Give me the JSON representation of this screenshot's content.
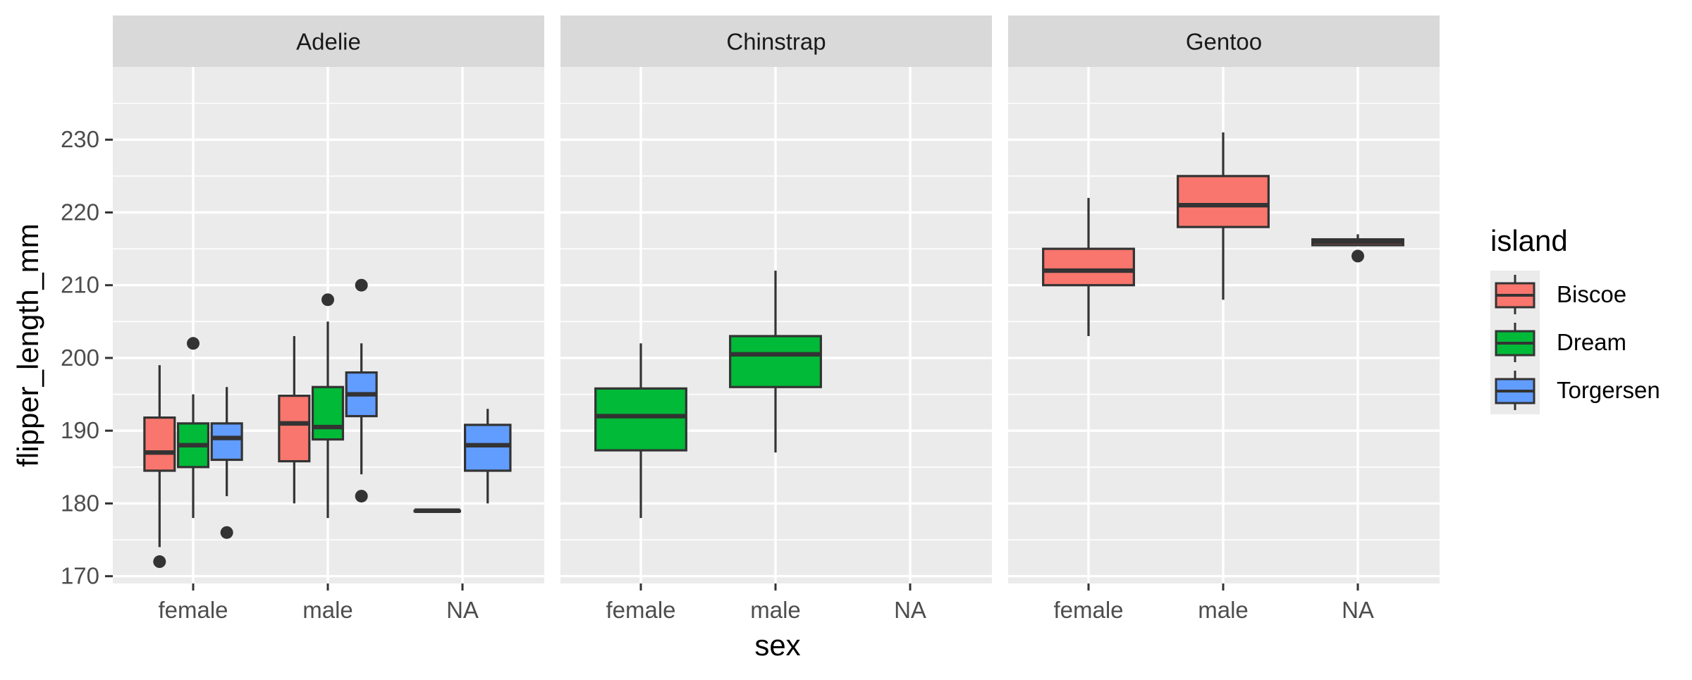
{
  "chart_data": {
    "type": "boxplot",
    "facet_var": "species",
    "facets": [
      "Adelie",
      "Chinstrap",
      "Gentoo"
    ],
    "categories": [
      "female",
      "male",
      "NA"
    ],
    "xlabel": "sex",
    "ylabel": "flipper_length_mm",
    "ylim": [
      169,
      240
    ],
    "yticks": [
      170,
      180,
      190,
      200,
      210,
      220,
      230
    ],
    "grid": true,
    "legend": {
      "title": "island",
      "position": "right",
      "entries": [
        "Biscoe",
        "Dream",
        "Torgersen"
      ]
    },
    "colors": {
      "Biscoe": "#F8766D",
      "Dream": "#00BA38",
      "Torgersen": "#619CFF",
      "panel_bg": "#EBEBEB",
      "strip_bg": "#D9D9D9",
      "grid": "#FFFFFF",
      "box_line": "#333333"
    },
    "boxes": [
      {
        "facet": "Adelie",
        "sex": "female",
        "island": "Biscoe",
        "n_groups": 3,
        "slot": 0,
        "lower": 174,
        "q1": 184.5,
        "median": 187,
        "q3": 191.8,
        "upper": 199,
        "outliers": [
          172
        ]
      },
      {
        "facet": "Adelie",
        "sex": "female",
        "island": "Dream",
        "n_groups": 3,
        "slot": 1,
        "lower": 178,
        "q1": 185,
        "median": 188,
        "q3": 191,
        "upper": 195,
        "outliers": [
          202
        ]
      },
      {
        "facet": "Adelie",
        "sex": "female",
        "island": "Torgersen",
        "n_groups": 3,
        "slot": 2,
        "lower": 181,
        "q1": 186,
        "median": 189,
        "q3": 191,
        "upper": 196,
        "outliers": [
          176
        ]
      },
      {
        "facet": "Adelie",
        "sex": "male",
        "island": "Biscoe",
        "n_groups": 3,
        "slot": 0,
        "lower": 180,
        "q1": 185.8,
        "median": 191,
        "q3": 194.8,
        "upper": 203,
        "outliers": []
      },
      {
        "facet": "Adelie",
        "sex": "male",
        "island": "Dream",
        "n_groups": 3,
        "slot": 1,
        "lower": 178,
        "q1": 188.8,
        "median": 190.5,
        "q3": 196,
        "upper": 205,
        "outliers": [
          208
        ]
      },
      {
        "facet": "Adelie",
        "sex": "male",
        "island": "Torgersen",
        "n_groups": 3,
        "slot": 2,
        "lower": 184,
        "q1": 192,
        "median": 195,
        "q3": 198,
        "upper": 202,
        "outliers": [
          181,
          210
        ]
      },
      {
        "facet": "Adelie",
        "sex": "NA",
        "island": "Dream",
        "n_groups": 2,
        "slot": 0,
        "lower": 179,
        "q1": 179,
        "median": 179,
        "q3": 179,
        "upper": 179,
        "outliers": []
      },
      {
        "facet": "Adelie",
        "sex": "NA",
        "island": "Torgersen",
        "n_groups": 2,
        "slot": 1,
        "lower": 180,
        "q1": 184.5,
        "median": 188,
        "q3": 190.8,
        "upper": 193,
        "outliers": []
      },
      {
        "facet": "Chinstrap",
        "sex": "female",
        "island": "Dream",
        "n_groups": 1,
        "slot": 0,
        "lower": 178,
        "q1": 187.3,
        "median": 192,
        "q3": 195.8,
        "upper": 202,
        "outliers": []
      },
      {
        "facet": "Chinstrap",
        "sex": "male",
        "island": "Dream",
        "n_groups": 1,
        "slot": 0,
        "lower": 187,
        "q1": 196,
        "median": 200.5,
        "q3": 203,
        "upper": 212,
        "outliers": []
      },
      {
        "facet": "Gentoo",
        "sex": "female",
        "island": "Biscoe",
        "n_groups": 1,
        "slot": 0,
        "lower": 203,
        "q1": 210,
        "median": 212,
        "q3": 215,
        "upper": 222,
        "outliers": []
      },
      {
        "facet": "Gentoo",
        "sex": "male",
        "island": "Biscoe",
        "n_groups": 1,
        "slot": 0,
        "lower": 208,
        "q1": 218,
        "median": 221,
        "q3": 225,
        "upper": 231,
        "outliers": []
      },
      {
        "facet": "Gentoo",
        "sex": "NA",
        "island": "Biscoe",
        "n_groups": 1,
        "slot": 0,
        "lower": 215.5,
        "q1": 215.5,
        "median": 216,
        "q3": 216.3,
        "upper": 217,
        "outliers": [
          214
        ]
      }
    ]
  }
}
